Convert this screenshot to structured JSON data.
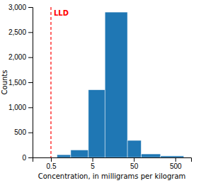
{
  "chart_data": {
    "type": "histogram",
    "xlabel": "Concentration, in milligrams per kilogram",
    "ylabel": "Counts",
    "bins": [
      0.2,
      0.7,
      1.5,
      4.0,
      10.0,
      35.0,
      75.0,
      220.0,
      800.0
    ],
    "values": [
      0,
      55,
      150,
      1350,
      2900,
      340,
      70,
      30
    ],
    "log": "x",
    "xlim": [
      0.18,
      1200
    ],
    "xticks": [
      0.5,
      5,
      50,
      500
    ],
    "ylim": [
      0,
      3000
    ],
    "yticks": [
      0,
      500,
      {
        "value": 1000,
        "label": "1,000"
      },
      {
        "value": 1500,
        "label": "1,500"
      },
      {
        "value": 2000,
        "label": "2,000"
      },
      {
        "value": 2500,
        "label": "2,500"
      },
      {
        "value": 3000,
        "label": "3,000"
      }
    ],
    "annotations": [
      {
        "type": "vline",
        "x": 0.5,
        "label": "LLD",
        "color": "#ff0000",
        "line_style": "dashed"
      }
    ]
  }
}
